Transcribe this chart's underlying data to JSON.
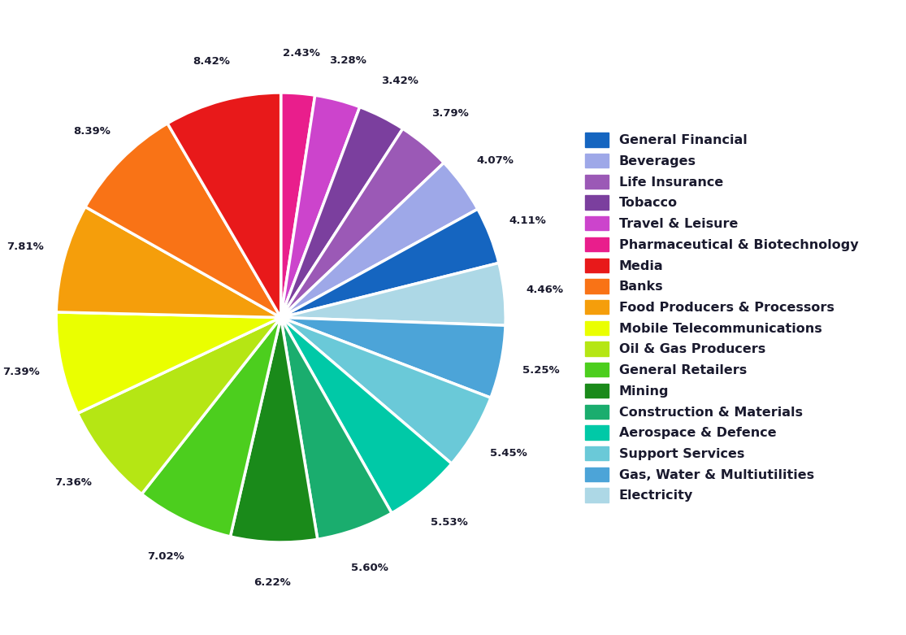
{
  "labels": [
    "Pharmaceutical & Biotechnology",
    "Travel & Leisure",
    "Tobacco",
    "Life Insurance",
    "Beverages",
    "General Financial",
    "Electricity",
    "Gas, Water & Multiutilities",
    "Support Services",
    "Aerospace & Defence",
    "Construction & Materials",
    "Mining",
    "General Retailers",
    "Oil & Gas Producers",
    "Mobile Telecommunications",
    "Food Producers & Processors",
    "Banks",
    "Media"
  ],
  "values": [
    2.43,
    3.28,
    3.42,
    3.79,
    4.07,
    4.11,
    4.46,
    5.25,
    5.45,
    5.53,
    5.6,
    6.22,
    7.02,
    7.36,
    7.39,
    7.81,
    8.39,
    8.42
  ],
  "colors": [
    "#e91e8c",
    "#cc44cc",
    "#7b3f9e",
    "#9b59b6",
    "#9ea8e8",
    "#1565c0",
    "#add8e6",
    "#4ca4d8",
    "#6ac9d8",
    "#00c9a7",
    "#1aad6e",
    "#1a8a1a",
    "#4cce1e",
    "#b5e614",
    "#eaff00",
    "#f59e0b",
    "#f97316",
    "#e8191a"
  ],
  "legend_order": [
    "General Financial",
    "Beverages",
    "Life Insurance",
    "Tobacco",
    "Travel & Leisure",
    "Pharmaceutical & Biotechnology",
    "Media",
    "Banks",
    "Food Producers & Processors",
    "Mobile Telecommunications",
    "Oil & Gas Producers",
    "General Retailers",
    "Mining",
    "Construction & Materials",
    "Aerospace & Defence",
    "Support Services",
    "Gas, Water & Multiutilities",
    "Electricity"
  ],
  "legend_colors": {
    "General Financial": "#1565c0",
    "Beverages": "#9ea8e8",
    "Life Insurance": "#9b59b6",
    "Tobacco": "#7b3f9e",
    "Travel & Leisure": "#cc44cc",
    "Pharmaceutical & Biotechnology": "#e91e8c",
    "Media": "#e8191a",
    "Banks": "#f97316",
    "Food Producers & Processors": "#f59e0b",
    "Mobile Telecommunications": "#eaff00",
    "Oil & Gas Producers": "#b5e614",
    "General Retailers": "#4cce1e",
    "Mining": "#1a8a1a",
    "Construction & Materials": "#1aad6e",
    "Aerospace & Defence": "#00c9a7",
    "Support Services": "#6ac9d8",
    "Gas, Water & Multiutilities": "#4ca4d8",
    "Electricity": "#add8e6"
  },
  "startangle": 90,
  "label_distance": 1.18,
  "figsize": [
    11.15,
    7.81
  ]
}
